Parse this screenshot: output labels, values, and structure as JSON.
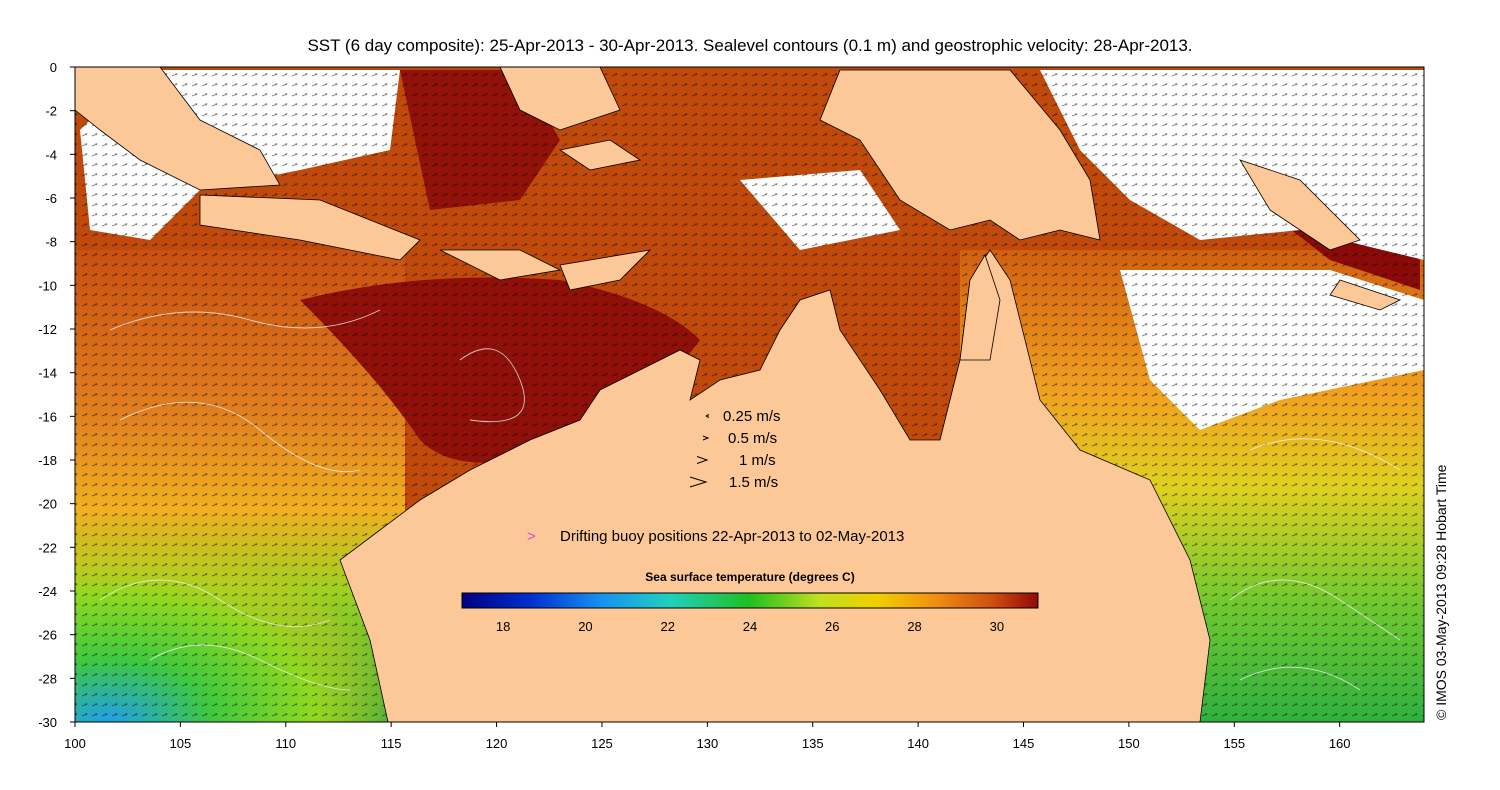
{
  "title": "SST (6 day composite): 25-Apr-2013 - 30-Apr-2013. Sealevel contours (0.1 m) and geostrophic velocity: 28-Apr-2013.",
  "credit": "© IMOS 03-May-2013 09:28 Hobart Time",
  "axes": {
    "x_ticks": [
      "100",
      "105",
      "110",
      "115",
      "120",
      "125",
      "130",
      "135",
      "140",
      "145",
      "150",
      "155",
      "160"
    ],
    "y_ticks": [
      "0",
      "-2",
      "-4",
      "-6",
      "-8",
      "-10",
      "-12",
      "-14",
      "-16",
      "-18",
      "-20",
      "-22",
      "-24",
      "-26",
      "-28",
      "-30"
    ],
    "lon_range": [
      100,
      164
    ],
    "lat_range": [
      -30,
      0
    ]
  },
  "velocity_legend": [
    {
      "label": "0.25 m/s",
      "speed": 0.25
    },
    {
      "label": "0.5 m/s",
      "speed": 0.5
    },
    {
      "label": "1 m/s",
      "speed": 1
    },
    {
      "label": "1.5 m/s",
      "speed": 1.5
    }
  ],
  "buoy_legend": {
    "symbol": ">",
    "label": "Drifting buoy positions 22-Apr-2013 to 02-May-2013",
    "color": "#e040e0"
  },
  "colorbar": {
    "title": "Sea surface temperature (degrees C)",
    "ticks": [
      "18",
      "20",
      "22",
      "24",
      "26",
      "28",
      "30"
    ],
    "range": [
      17,
      31
    ]
  },
  "colors": {
    "land": "#fdc898",
    "warm": "#b03a08",
    "hot": "#8a0a08",
    "mid": "#e89020",
    "cool": "#40c030",
    "cold": "#20a0e0",
    "cloud": "#ffffff"
  }
}
